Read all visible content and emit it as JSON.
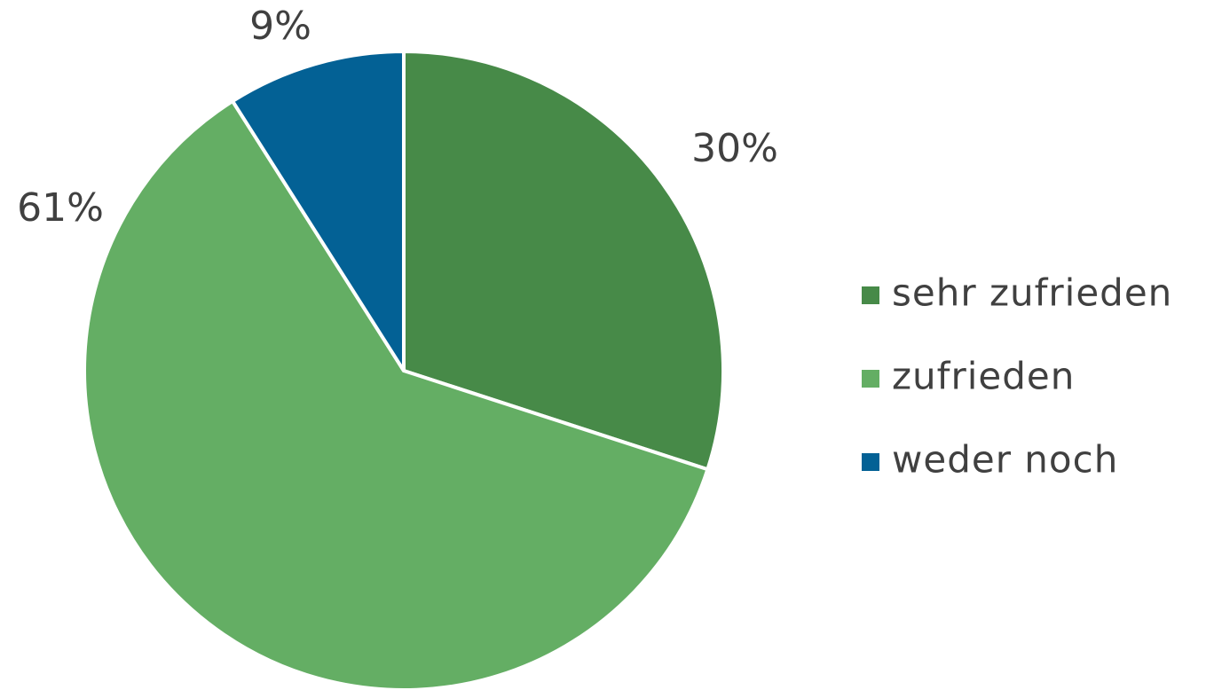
{
  "chart_data": {
    "type": "pie",
    "categories": [
      "sehr zufrieden",
      "zufrieden",
      "weder noch"
    ],
    "values": [
      30,
      61,
      9
    ],
    "value_labels": [
      "30%",
      "61%",
      "9%"
    ],
    "colors": [
      "#478a48",
      "#64ae64",
      "#036195"
    ],
    "legend": "right"
  }
}
